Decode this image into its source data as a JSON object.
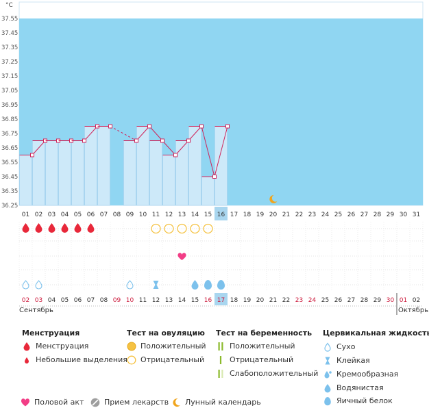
{
  "chart_data": {
    "type": "line",
    "title": "",
    "unit": "°C",
    "ylim": [
      36.25,
      37.6
    ],
    "yticks": [
      "37.55",
      "37.45",
      "37.35",
      "37.25",
      "37.15",
      "37.05",
      "36.95",
      "36.85",
      "36.75",
      "36.65",
      "36.55",
      "36.45",
      "36.35",
      "36.25"
    ],
    "cycle_days": [
      "01",
      "02",
      "03",
      "04",
      "05",
      "06",
      "07",
      "08",
      "09",
      "10",
      "11",
      "12",
      "13",
      "14",
      "15",
      "16",
      "17",
      "18",
      "19",
      "20",
      "21",
      "22",
      "23",
      "24",
      "25",
      "26",
      "27",
      "28",
      "29",
      "30",
      "31"
    ],
    "current_cycle_day": "16",
    "temperatures": [
      36.6,
      36.7,
      36.7,
      36.7,
      36.7,
      36.8,
      36.8,
      null,
      36.7,
      36.8,
      36.7,
      36.6,
      36.7,
      36.8,
      36.45,
      36.8
    ],
    "dashed_gap": [
      7,
      9
    ],
    "moon_day": 20,
    "menstruation_days": [
      1,
      2,
      3,
      4,
      5,
      6
    ],
    "ovulation_test_negative_days": [
      11,
      12,
      13,
      14,
      15
    ],
    "intercourse_days": [
      13
    ],
    "cervical_fluid": [
      {
        "day": 1,
        "type": "dry"
      },
      {
        "day": 2,
        "type": "dry"
      },
      {
        "day": 9,
        "type": "dry"
      },
      {
        "day": 11,
        "type": "sticky"
      },
      {
        "day": 14,
        "type": "watery"
      },
      {
        "day": 15,
        "type": "eggwhite"
      },
      {
        "day": 16,
        "type": "eggwhite"
      }
    ],
    "calendar_dates": [
      {
        "label": "02",
        "weekend": true
      },
      {
        "label": "03",
        "weekend": true
      },
      {
        "label": "04",
        "weekend": false
      },
      {
        "label": "05",
        "weekend": false
      },
      {
        "label": "06",
        "weekend": false
      },
      {
        "label": "07",
        "weekend": false
      },
      {
        "label": "08",
        "weekend": false
      },
      {
        "label": "09",
        "weekend": true
      },
      {
        "label": "10",
        "weekend": true
      },
      {
        "label": "11",
        "weekend": false
      },
      {
        "label": "12",
        "weekend": false
      },
      {
        "label": "13",
        "weekend": false
      },
      {
        "label": "14",
        "weekend": false
      },
      {
        "label": "15",
        "weekend": false
      },
      {
        "label": "16",
        "weekend": true
      },
      {
        "label": "17",
        "weekend": true
      },
      {
        "label": "18",
        "weekend": false
      },
      {
        "label": "19",
        "weekend": false
      },
      {
        "label": "20",
        "weekend": false
      },
      {
        "label": "21",
        "weekend": false
      },
      {
        "label": "22",
        "weekend": false
      },
      {
        "label": "23",
        "weekend": true
      },
      {
        "label": "24",
        "weekend": true
      },
      {
        "label": "25",
        "weekend": false
      },
      {
        "label": "26",
        "weekend": false
      },
      {
        "label": "27",
        "weekend": false
      },
      {
        "label": "28",
        "weekend": false
      },
      {
        "label": "29",
        "weekend": false
      },
      {
        "label": "30",
        "weekend": true
      },
      {
        "label": "01",
        "weekend": true
      },
      {
        "label": "02",
        "weekend": false
      }
    ],
    "current_calendar_date": "17",
    "month_start": "Сентябрь",
    "month_end": "Октябрь",
    "colors": {
      "sky": "#90d6f2",
      "bar": "#cde9f9",
      "bar_edge": "#a8d3ee",
      "line": "#d0245a",
      "highlight": "#a9d6ef",
      "blood": "#e8283a",
      "ovulation": "#f5c242",
      "fluid": "#7cc1ec",
      "heart": "#f23d86",
      "moon": "#f0a51e",
      "weekend": "#cc1a3c"
    }
  },
  "legend": {
    "menstruation": {
      "title": "Менструация",
      "items": [
        "Менструация",
        "Небольшие выделения"
      ]
    },
    "ovulation_test": {
      "title": "Тест на овуляцию",
      "items": [
        "Положительный",
        "Отрицательный"
      ]
    },
    "pregnancy_test": {
      "title": "Тест на беременность",
      "items": [
        "Положительный",
        "Отрицательный",
        "Слабоположительный"
      ]
    },
    "cervical_fluid": {
      "title": "Цервикальная жидкость",
      "items": [
        "Сухо",
        "Клейкая",
        "Кремообразная",
        "Водянистая",
        "Яичный белок"
      ]
    },
    "bottom": {
      "intercourse": "Половой акт",
      "medication": "Прием лекарств",
      "lunar": "Лунный календарь"
    }
  }
}
